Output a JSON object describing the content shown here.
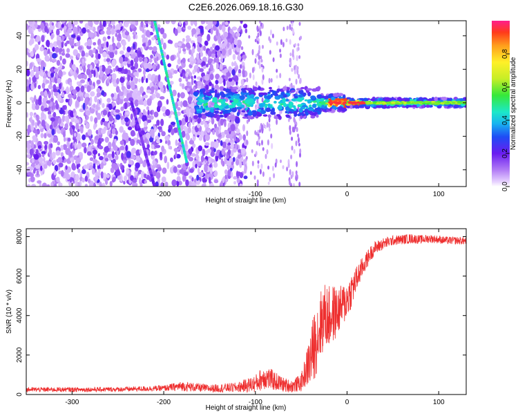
{
  "title": "C2E6.2026.069.18.16.G30",
  "colors": {
    "snr_line": "#ee2e2e",
    "axis": "#000000",
    "background": "#ffffff"
  },
  "chart_data": [
    {
      "type": "heatmap",
      "name": "spectrogram",
      "xlabel": "Height of straight line (km)",
      "ylabel": "Frequency (Hz)",
      "xlim": [
        -350,
        130
      ],
      "ylim": [
        -50,
        49
      ],
      "xticks": [
        -300,
        -200,
        -100,
        0,
        100
      ],
      "xtick_labels": [
        "-300",
        "-200",
        "-100",
        "0",
        "100"
      ],
      "yticks": [
        -40,
        -20,
        0,
        20,
        40
      ],
      "ytick_labels": [
        "-40",
        "-20",
        "0",
        "20",
        "40"
      ],
      "colorbar": {
        "label": "Normalized spectral amplitude",
        "range": [
          0,
          1
        ],
        "ticks": [
          0.0,
          0.2,
          0.4,
          0.6,
          0.8
        ],
        "tick_labels": [
          "0.0",
          "0.2",
          "0.4",
          "0.6",
          "0.8"
        ]
      },
      "features": {
        "noise_region_x": [
          -350,
          -110
        ],
        "sparse_noise_x": [
          -110,
          -50
        ],
        "diagonal_track": {
          "start": [
            -210,
            49
          ],
          "end": [
            -175,
            -35
          ],
          "amplitude": 0.45
        },
        "faint_track": {
          "start": [
            -235,
            0
          ],
          "end": [
            -210,
            -50
          ],
          "amplitude": 0.15
        },
        "carrier_line": {
          "x_from": -165,
          "x_to": 130,
          "frequency_hz": 0,
          "peak_x": [
            -20,
            20
          ],
          "peak_amplitude": 0.95
        }
      }
    },
    {
      "type": "line",
      "name": "snr",
      "xlabel": "Height of straight line (km)",
      "ylabel": "SNR (10 * v/v)",
      "xlim": [
        -350,
        130
      ],
      "ylim": [
        0,
        8400
      ],
      "xticks": [
        -300,
        -200,
        -100,
        0,
        100
      ],
      "xtick_labels": [
        "-300",
        "-200",
        "-100",
        "0",
        "100"
      ],
      "yticks": [
        0,
        2000,
        4000,
        6000,
        8000
      ],
      "ytick_labels": [
        "0",
        "2000",
        "4000",
        "6000",
        "8000"
      ],
      "series": [
        {
          "name": "SNR",
          "x": [
            -350,
            -300,
            -250,
            -200,
            -180,
            -150,
            -120,
            -100,
            -90,
            -80,
            -70,
            -60,
            -50,
            -45,
            -40,
            -35,
            -30,
            -25,
            -20,
            -15,
            -10,
            -5,
            0,
            5,
            10,
            15,
            20,
            25,
            30,
            40,
            50,
            60,
            70,
            80,
            90,
            100,
            110,
            120,
            130
          ],
          "y": [
            250,
            250,
            260,
            320,
            420,
            300,
            360,
            550,
            900,
            700,
            500,
            420,
            600,
            1200,
            1800,
            2600,
            3400,
            4000,
            3900,
            4100,
            4200,
            4500,
            4800,
            5300,
            5800,
            6300,
            6700,
            7100,
            7400,
            7650,
            7800,
            7850,
            7900,
            7850,
            7900,
            7850,
            7800,
            7800,
            7780
          ],
          "noise": [
            120,
            120,
            120,
            150,
            250,
            200,
            250,
            450,
            650,
            500,
            380,
            320,
            450,
            800,
            1500,
            1800,
            1800,
            1700,
            1600,
            1500,
            1200,
            1100,
            1000,
            900,
            700,
            550,
            450,
            400,
            350,
            300,
            250,
            250,
            250,
            220,
            220,
            200,
            200,
            200,
            200
          ]
        }
      ]
    }
  ]
}
